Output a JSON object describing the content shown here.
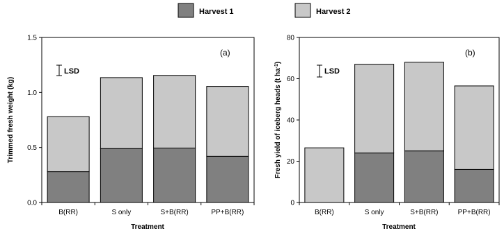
{
  "colors": {
    "harvest1": "#808080",
    "harvest2": "#c8c8c8",
    "stroke": "#000000"
  },
  "legend": [
    {
      "name": "Harvest 1",
      "color": "#808080"
    },
    {
      "name": "Harvest 2",
      "color": "#c8c8c8"
    }
  ],
  "chart_data": [
    {
      "type": "bar",
      "stacked": true,
      "panel_label": "(a)",
      "categories": [
        "B(RR)",
        "S only",
        "S+B(RR)",
        "PP+B(RR)"
      ],
      "series": [
        {
          "name": "Harvest 1",
          "values": [
            0.28,
            0.49,
            0.495,
            0.42
          ]
        },
        {
          "name": "Harvest 2",
          "values": [
            0.5,
            0.645,
            0.66,
            0.635
          ]
        }
      ],
      "xlabel": "Treatment",
      "ylabel": "Trimmed fresh weight (kg)",
      "ylim": [
        0,
        1.5
      ],
      "yticks": [
        "0.0",
        "0.5",
        "1.0",
        "1.5"
      ],
      "annotation": "LSD",
      "grid": false
    },
    {
      "type": "bar",
      "stacked": true,
      "panel_label": "(b)",
      "categories": [
        "B(RR)",
        "S only",
        "S+B(RR)",
        "PP+B(RR)"
      ],
      "series": [
        {
          "name": "Harvest 1",
          "values": [
            0,
            24,
            25,
            16
          ]
        },
        {
          "name": "Harvest 2",
          "values": [
            26.5,
            43,
            43,
            40.5
          ]
        }
      ],
      "xlabel": "Treatment",
      "ylabel": "Fresh yield of iceberg heads (t ha-1)",
      "ylim": [
        0,
        80
      ],
      "yticks": [
        "0",
        "20",
        "40",
        "60",
        "80"
      ],
      "annotation": "LSD",
      "grid": false
    }
  ]
}
